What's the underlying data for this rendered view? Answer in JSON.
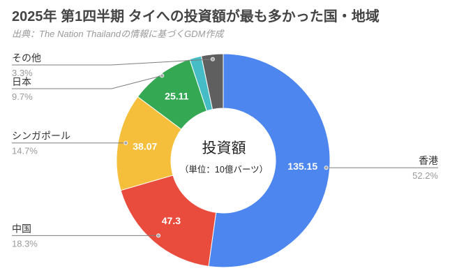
{
  "chart_data": {
    "type": "pie",
    "donut": true,
    "title": "2025年 第1四半期 タイへの投資額が最も多かった国・地域",
    "subtitle": "出典：The Nation Thailandの情報に基づくGDM作成",
    "center_label": "投資額",
    "unit_label": "（単位：10億バーツ）",
    "slices": [
      {
        "label": "香港",
        "value": 135.15,
        "percent": 52.2,
        "color": "#4c86ee"
      },
      {
        "label": "中国",
        "value": 47.3,
        "percent": 18.3,
        "color": "#e94c3d"
      },
      {
        "label": "シンガポール",
        "value": 38.07,
        "percent": 14.7,
        "color": "#f5bf3c"
      },
      {
        "label": "日本",
        "value": 25.11,
        "percent": 9.7,
        "color": "#35a853"
      },
      {
        "percent": 1.8,
        "color": "#46bdc6"
      },
      {
        "label": "その他",
        "percent": 3.3,
        "color": "#5f5f5f"
      }
    ]
  }
}
